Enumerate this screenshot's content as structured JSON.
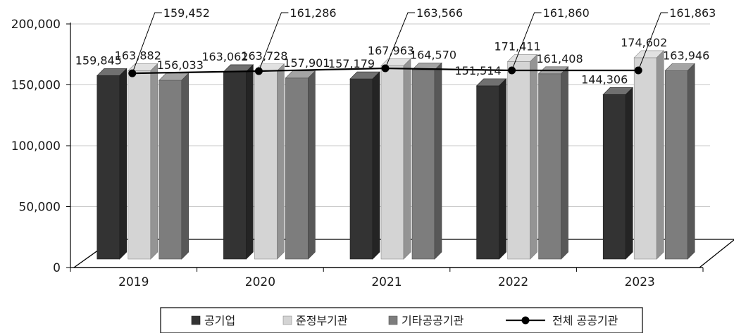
{
  "chart_data": {
    "type": "bar",
    "categories": [
      "2019",
      "2020",
      "2021",
      "2022",
      "2023"
    ],
    "series": [
      {
        "name": "공기업",
        "values": [
          159845,
          163062,
          157179,
          151514,
          144306
        ],
        "color": "#333333"
      },
      {
        "name": "준정부기관",
        "values": [
          163882,
          163728,
          167963,
          171411,
          174602
        ],
        "color": "#d4d4d4"
      },
      {
        "name": "기타공공기관",
        "values": [
          156033,
          157901,
          164570,
          161408,
          163946
        ],
        "color": "#7d7d7d"
      }
    ],
    "line_series": {
      "name": "전체 공공기관",
      "values": [
        159452,
        161286,
        163566,
        161860,
        161863
      ],
      "color": "#000000"
    },
    "value_labels": {
      "bars": [
        [
          "159,845",
          "163,882",
          "156,033"
        ],
        [
          "163,062",
          "163,728",
          "157,901"
        ],
        [
          "157,179",
          "167,963",
          "164,570"
        ],
        [
          "151,514",
          "171,411",
          "161,408"
        ],
        [
          "144,306",
          "174,602",
          "163,946"
        ]
      ],
      "line": [
        "159,452",
        "161,286",
        "163,566",
        "161,860",
        "161,863"
      ]
    },
    "ylim": [
      0,
      200000
    ],
    "yticks": [
      0,
      50000,
      100000,
      150000,
      200000
    ],
    "ytick_labels": [
      "0",
      "50,000",
      "100,000",
      "150,000",
      "200,000"
    ],
    "grid": true,
    "legend_position": "bottom"
  }
}
